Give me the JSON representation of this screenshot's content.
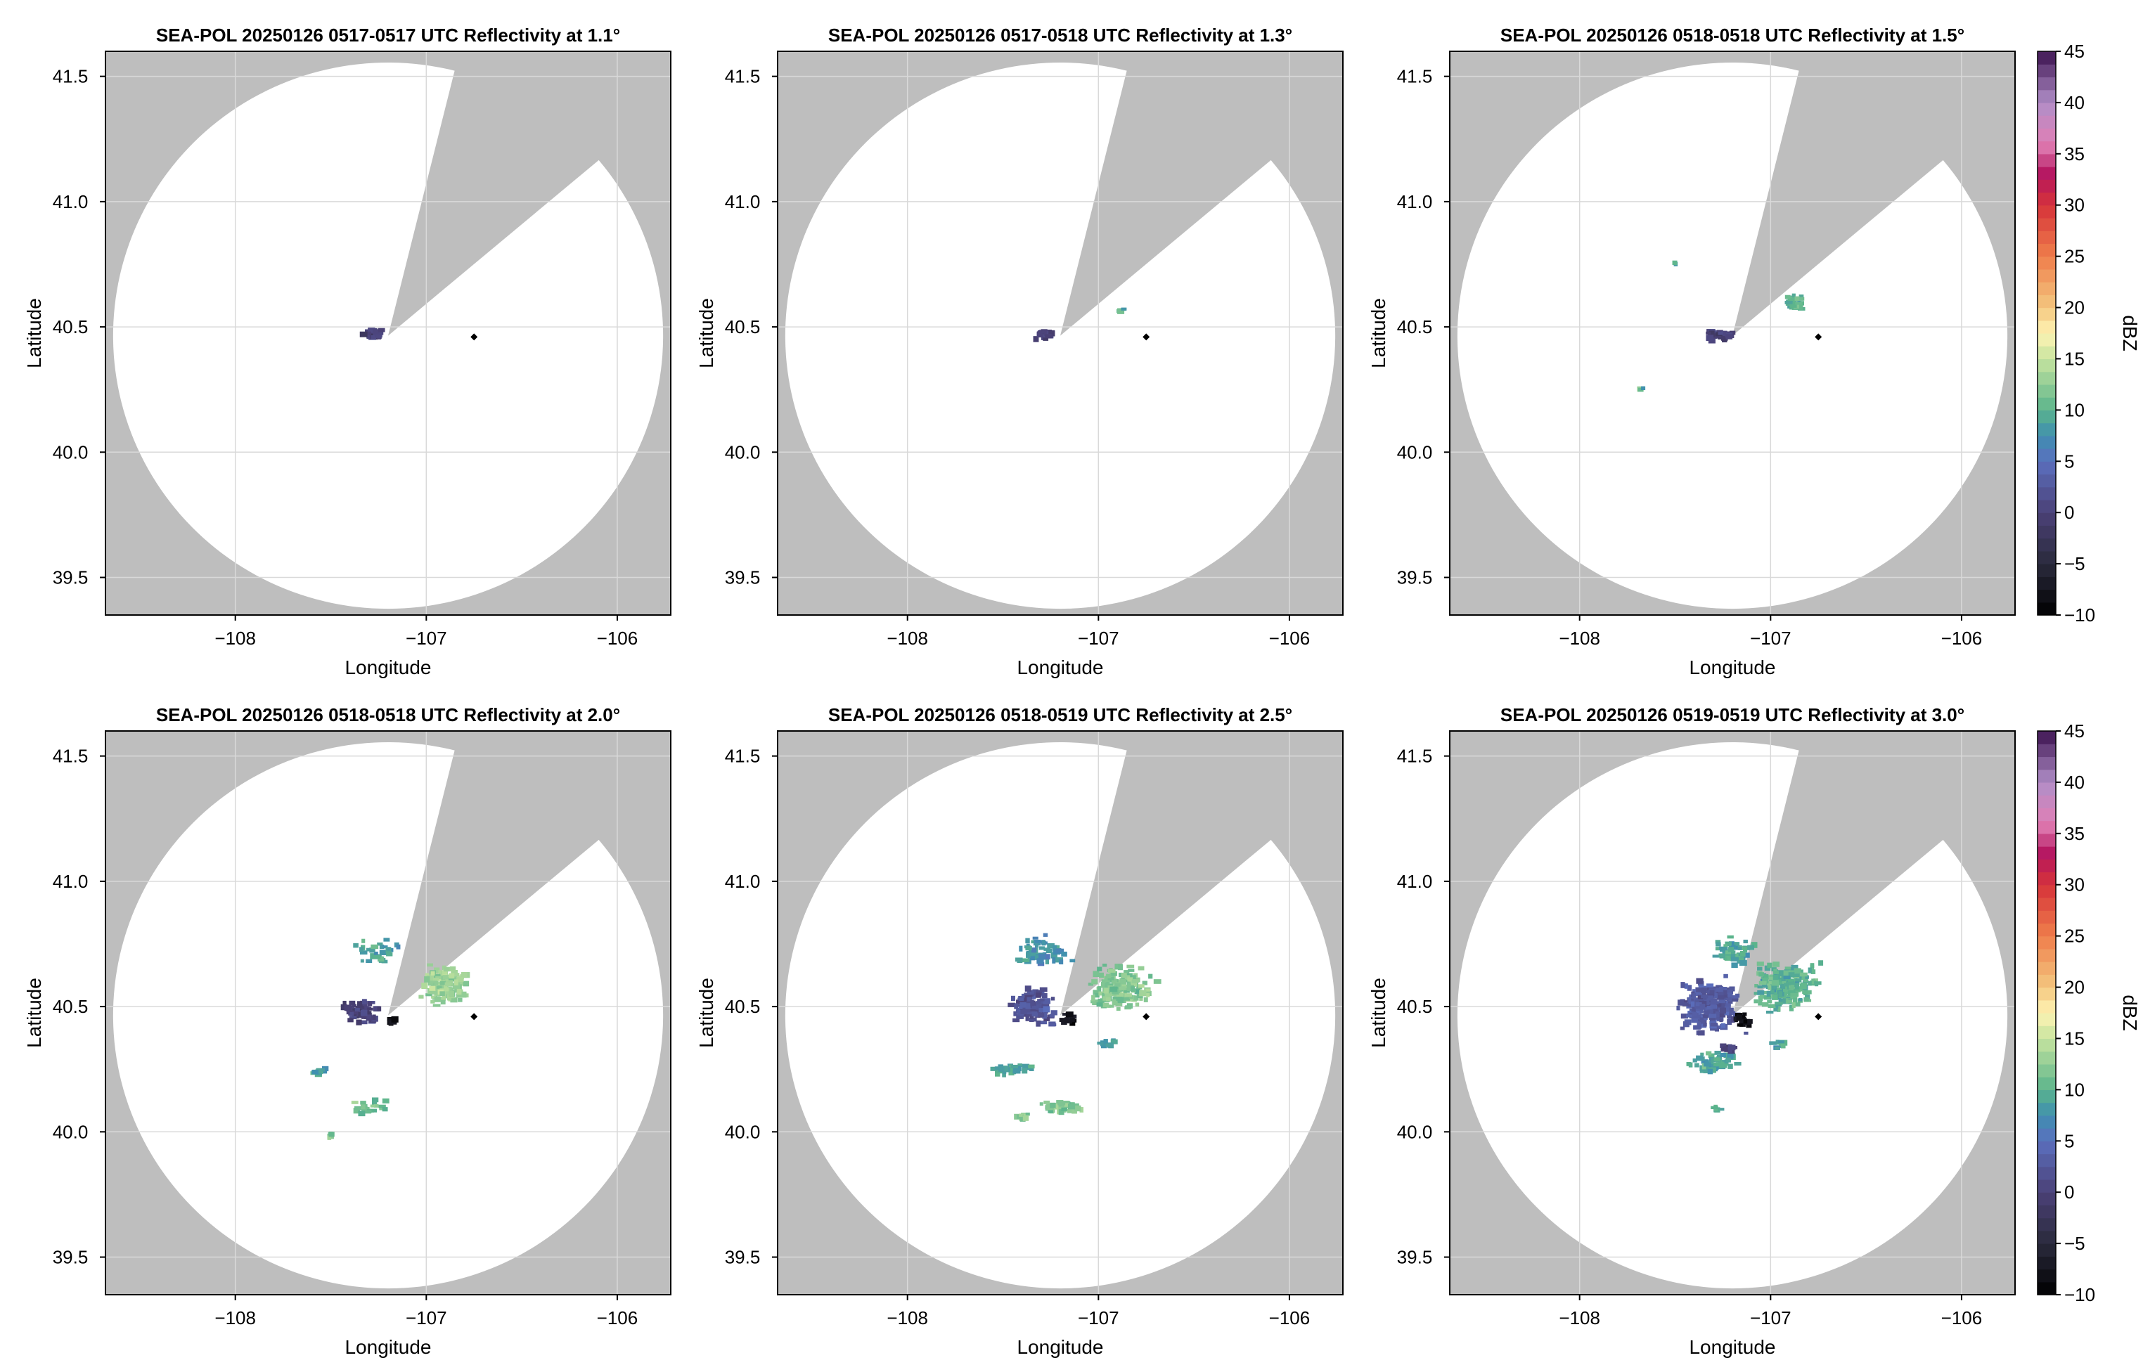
{
  "chart_data": {
    "type": "heatmap",
    "colors": {
      "background": "#bebebe",
      "coverage": "#ffffff",
      "grid": "#d9d9d9",
      "site_marker": "#000000"
    },
    "grid": true,
    "site": {
      "lon": -106.75,
      "lat": 40.46
    },
    "radar": {
      "lon": -107.2,
      "lat": 40.465,
      "range_deg_lat": 1.09,
      "range_deg_lon": 1.44
    },
    "blocked_sector": {
      "azimuth_start": 14,
      "azimuth_end": 50
    },
    "xlim": [
      -108.68,
      -105.72
    ],
    "ylim": [
      39.35,
      41.6
    ],
    "xticks": [
      -108,
      -107,
      -106
    ],
    "xtick_labels": [
      "−108",
      "−107",
      "−106"
    ],
    "yticks": [
      39.5,
      40.0,
      40.5,
      41.0,
      41.5
    ],
    "ytick_labels": [
      "39.5",
      "40.0",
      "40.5",
      "41.0",
      "41.5"
    ],
    "xlabel": "Longitude",
    "ylabel": "Latitude",
    "colorbar": {
      "label": "dBZ",
      "range": [
        -10,
        45
      ],
      "ticks": [
        -10,
        -5,
        0,
        5,
        10,
        15,
        20,
        25,
        30,
        35,
        40,
        45
      ],
      "tick_labels": [
        "−10",
        "−5",
        "0",
        "5",
        "10",
        "15",
        "20",
        "25",
        "30",
        "35",
        "40",
        "45"
      ],
      "stops": [
        [
          -10,
          "#000000"
        ],
        [
          -5,
          "#2a2a3c"
        ],
        [
          0,
          "#4b4177"
        ],
        [
          5,
          "#5b6fbe"
        ],
        [
          7.5,
          "#3f8fb0"
        ],
        [
          10,
          "#5bb48c"
        ],
        [
          15,
          "#c6e49f"
        ],
        [
          17.5,
          "#fff4b4"
        ],
        [
          20,
          "#f4c77f"
        ],
        [
          25,
          "#ef7e4b"
        ],
        [
          30,
          "#d6333a"
        ],
        [
          33,
          "#b4155f"
        ],
        [
          36,
          "#e07fb5"
        ],
        [
          40,
          "#b08ec8"
        ],
        [
          45,
          "#3d1350"
        ]
      ]
    },
    "panels": [
      {
        "title": "SEA-POL 20250126 0517-0517 UTC Reflectivity at 1.1°",
        "colorbar": false,
        "echoes": [
          {
            "lon": -107.28,
            "lat": 40.47,
            "rx": 0.08,
            "ry": 0.025,
            "dbz": 0,
            "n": 30
          }
        ]
      },
      {
        "title": "SEA-POL 20250126 0517-0518 UTC Reflectivity at 1.3°",
        "colorbar": false,
        "echoes": [
          {
            "lon": -107.28,
            "lat": 40.47,
            "rx": 0.08,
            "ry": 0.025,
            "dbz": 0,
            "n": 30
          },
          {
            "lon": -106.88,
            "lat": 40.56,
            "rx": 0.03,
            "ry": 0.02,
            "dbz": 10,
            "n": 4
          }
        ]
      },
      {
        "title": "SEA-POL 20250126 0518-0518 UTC Reflectivity at 1.5°",
        "colorbar": true,
        "echoes": [
          {
            "lon": -107.27,
            "lat": 40.47,
            "rx": 0.1,
            "ry": 0.03,
            "dbz": 0,
            "n": 35
          },
          {
            "lon": -106.88,
            "lat": 40.6,
            "rx": 0.07,
            "ry": 0.05,
            "dbz": 10,
            "n": 30
          },
          {
            "lon": -107.5,
            "lat": 40.75,
            "rx": 0.01,
            "ry": 0.01,
            "dbz": 10,
            "n": 2
          },
          {
            "lon": -107.68,
            "lat": 40.25,
            "rx": 0.03,
            "ry": 0.01,
            "dbz": 10,
            "n": 3
          }
        ]
      },
      {
        "title": "SEA-POL 20250126 0518-0518 UTC Reflectivity at 2.0°",
        "colorbar": false,
        "echoes": [
          {
            "lon": -107.33,
            "lat": 40.48,
            "rx": 0.14,
            "ry": 0.06,
            "dbz": 0,
            "n": 60
          },
          {
            "lon": -106.9,
            "lat": 40.58,
            "rx": 0.16,
            "ry": 0.1,
            "dbz": 13,
            "n": 140
          },
          {
            "lon": -107.25,
            "lat": 40.72,
            "rx": 0.14,
            "ry": 0.08,
            "dbz": 9,
            "n": 30
          },
          {
            "lon": -107.55,
            "lat": 40.24,
            "rx": 0.06,
            "ry": 0.02,
            "dbz": 9,
            "n": 12
          },
          {
            "lon": -107.3,
            "lat": 40.1,
            "rx": 0.14,
            "ry": 0.04,
            "dbz": 11,
            "n": 25
          },
          {
            "lon": -107.5,
            "lat": 39.98,
            "rx": 0.02,
            "ry": 0.03,
            "dbz": 12,
            "n": 5
          },
          {
            "lon": -107.18,
            "lat": 40.44,
            "rx": 0.03,
            "ry": 0.02,
            "dbz": -8,
            "n": 10
          }
        ]
      },
      {
        "title": "SEA-POL 20250126 0518-0519 UTC Reflectivity at 2.5°",
        "colorbar": false,
        "echoes": [
          {
            "lon": -107.35,
            "lat": 40.5,
            "rx": 0.18,
            "ry": 0.09,
            "dbz": 2,
            "n": 120
          },
          {
            "lon": -106.88,
            "lat": 40.57,
            "rx": 0.2,
            "ry": 0.12,
            "dbz": 12,
            "n": 180
          },
          {
            "lon": -107.3,
            "lat": 40.72,
            "rx": 0.18,
            "ry": 0.08,
            "dbz": 8,
            "n": 60
          },
          {
            "lon": -107.45,
            "lat": 40.25,
            "rx": 0.14,
            "ry": 0.03,
            "dbz": 9,
            "n": 30
          },
          {
            "lon": -107.2,
            "lat": 40.1,
            "rx": 0.14,
            "ry": 0.04,
            "dbz": 12,
            "n": 40
          },
          {
            "lon": -107.4,
            "lat": 40.06,
            "rx": 0.05,
            "ry": 0.02,
            "dbz": 12,
            "n": 10
          },
          {
            "lon": -107.15,
            "lat": 40.45,
            "rx": 0.06,
            "ry": 0.03,
            "dbz": -8,
            "n": 14
          },
          {
            "lon": -106.95,
            "lat": 40.35,
            "rx": 0.08,
            "ry": 0.03,
            "dbz": 9,
            "n": 12
          }
        ]
      },
      {
        "title": "SEA-POL 20250126 0519-0519 UTC Reflectivity at 3.0°",
        "colorbar": true,
        "echoes": [
          {
            "lon": -107.32,
            "lat": 40.5,
            "rx": 0.22,
            "ry": 0.14,
            "dbz": 3,
            "n": 220
          },
          {
            "lon": -106.92,
            "lat": 40.58,
            "rx": 0.22,
            "ry": 0.12,
            "dbz": 10,
            "n": 200
          },
          {
            "lon": -107.2,
            "lat": 40.72,
            "rx": 0.16,
            "ry": 0.07,
            "dbz": 9,
            "n": 60
          },
          {
            "lon": -107.28,
            "lat": 40.28,
            "rx": 0.2,
            "ry": 0.06,
            "dbz": 9,
            "n": 50
          },
          {
            "lon": -107.22,
            "lat": 40.33,
            "rx": 0.05,
            "ry": 0.02,
            "dbz": 0,
            "n": 10
          },
          {
            "lon": -107.15,
            "lat": 40.45,
            "rx": 0.06,
            "ry": 0.03,
            "dbz": -8,
            "n": 16
          },
          {
            "lon": -106.95,
            "lat": 40.35,
            "rx": 0.06,
            "ry": 0.03,
            "dbz": 9,
            "n": 10
          },
          {
            "lon": -107.28,
            "lat": 40.09,
            "rx": 0.03,
            "ry": 0.01,
            "dbz": 10,
            "n": 6
          }
        ]
      }
    ]
  }
}
